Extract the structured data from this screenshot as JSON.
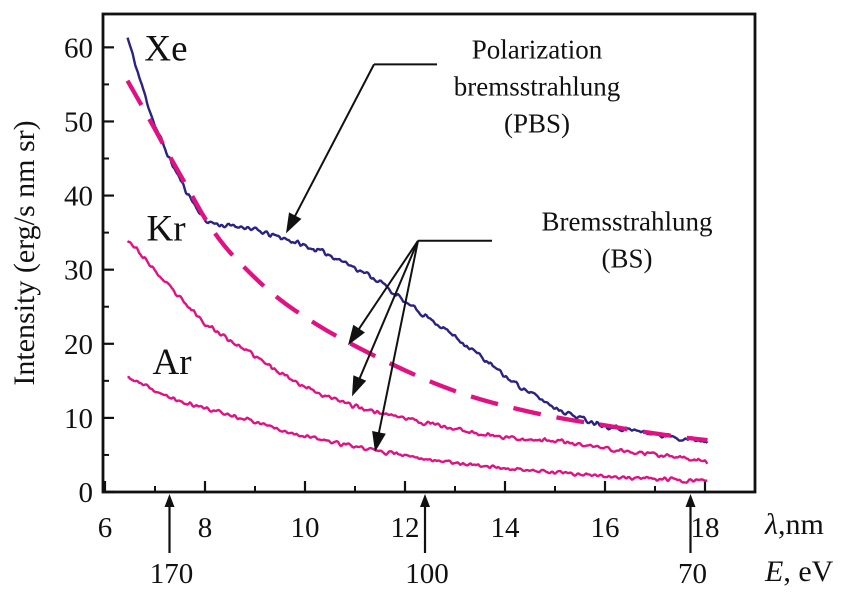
{
  "chart_data": {
    "type": "line",
    "title": "",
    "ylabel": "Intensity (erg/s nm sr)",
    "xlabel": {
      "symbol": "λ",
      "rest": ",nm"
    },
    "x2label": {
      "symbol": "E",
      "rest": ", eV"
    },
    "xlim": [
      5.96,
      19.0
    ],
    "ylim": [
      0,
      64.5
    ],
    "x_major_ticks": [
      6,
      8,
      10,
      12,
      14,
      16,
      18
    ],
    "x_minor_ticks": [
      7,
      9,
      11,
      13,
      15,
      17
    ],
    "y_major_ticks": [
      0,
      10,
      20,
      30,
      40,
      50,
      60
    ],
    "y_minor_ticks": [
      5,
      15,
      25,
      35,
      45,
      55
    ],
    "grid": false,
    "legend_position": "none",
    "x2_markers": [
      {
        "label": "170",
        "lambda": 7.29
      },
      {
        "label": "100",
        "lambda": 12.4
      },
      {
        "label": "70",
        "lambda": 17.71
      }
    ],
    "colors": {
      "pbs_curve": "#2a2383",
      "bs_curve": "#e01283",
      "axis": "#111111"
    },
    "series": [
      {
        "name": "Kr",
        "style": "noisy",
        "color": "#e01283",
        "noise": 0.42,
        "points": [
          [
            6.45,
            34.2
          ],
          [
            6.8,
            31.4
          ],
          [
            7.2,
            28.3
          ],
          [
            7.6,
            25.4
          ],
          [
            8.0,
            22.8
          ],
          [
            8.4,
            20.9
          ],
          [
            8.8,
            19.2
          ],
          [
            9.2,
            17.4
          ],
          [
            9.6,
            15.8
          ],
          [
            10.0,
            14.2
          ],
          [
            10.5,
            12.7
          ],
          [
            11.0,
            11.6
          ],
          [
            11.5,
            10.7
          ],
          [
            12.0,
            10.0
          ],
          [
            12.5,
            9.2
          ],
          [
            13.0,
            8.5
          ],
          [
            13.5,
            7.9
          ],
          [
            14.0,
            7.4
          ],
          [
            14.5,
            7.1
          ],
          [
            15.0,
            6.9
          ],
          [
            15.5,
            6.4
          ],
          [
            16.0,
            5.9
          ],
          [
            16.5,
            5.4
          ],
          [
            17.0,
            5.0
          ],
          [
            17.5,
            4.6
          ],
          [
            18.05,
            4.2
          ]
        ]
      },
      {
        "name": "Ar",
        "style": "noisy",
        "color": "#e01283",
        "noise": 0.36,
        "points": [
          [
            6.45,
            15.5
          ],
          [
            6.8,
            14.3
          ],
          [
            7.2,
            13.0
          ],
          [
            7.6,
            12.0
          ],
          [
            8.0,
            11.3
          ],
          [
            8.4,
            10.6
          ],
          [
            8.8,
            9.9
          ],
          [
            9.2,
            9.1
          ],
          [
            9.6,
            8.3
          ],
          [
            10.0,
            7.5
          ],
          [
            10.5,
            6.8
          ],
          [
            11.0,
            6.1
          ],
          [
            11.5,
            5.5
          ],
          [
            12.0,
            4.9
          ],
          [
            12.5,
            4.4
          ],
          [
            13.0,
            4.0
          ],
          [
            13.5,
            3.6
          ],
          [
            14.0,
            3.2
          ],
          [
            14.5,
            2.9
          ],
          [
            15.0,
            2.6
          ],
          [
            15.5,
            2.3
          ],
          [
            16.0,
            2.1
          ],
          [
            16.5,
            1.9
          ],
          [
            17.0,
            1.8
          ],
          [
            17.5,
            1.6
          ],
          [
            18.05,
            1.5
          ]
        ]
      },
      {
        "name": "Xe",
        "style": "noisy",
        "color": "#2a2383",
        "noise": 0.48,
        "points": [
          [
            6.45,
            61.3
          ],
          [
            6.7,
            55.6
          ],
          [
            7.0,
            49.4
          ],
          [
            7.3,
            44.8
          ],
          [
            7.6,
            40.9
          ],
          [
            7.8,
            38.7
          ],
          [
            8.0,
            36.6
          ],
          [
            8.4,
            35.9
          ],
          [
            8.8,
            35.8
          ],
          [
            9.2,
            34.9
          ],
          [
            9.6,
            34.2
          ],
          [
            10.0,
            33.2
          ],
          [
            10.5,
            32.0
          ],
          [
            11.0,
            30.3
          ],
          [
            11.5,
            28.4
          ],
          [
            12.0,
            25.6
          ],
          [
            12.5,
            23.4
          ],
          [
            13.0,
            21.0
          ],
          [
            13.5,
            18.4
          ],
          [
            14.0,
            15.6
          ],
          [
            14.5,
            13.4
          ],
          [
            15.0,
            11.4
          ],
          [
            15.5,
            10.0
          ],
          [
            16.0,
            9.0
          ],
          [
            16.5,
            8.4
          ],
          [
            17.0,
            7.8
          ],
          [
            17.5,
            7.3
          ],
          [
            18.05,
            6.9
          ]
        ]
      },
      {
        "name": "BS",
        "style": "dashed",
        "color": "#e01283",
        "noise": 0,
        "points": [
          [
            6.45,
            55.5
          ],
          [
            6.9,
            50.2
          ],
          [
            7.3,
            45.2
          ],
          [
            7.7,
            40.5
          ],
          [
            8.0,
            36.8
          ],
          [
            8.4,
            33.0
          ],
          [
            8.8,
            30.2
          ],
          [
            9.2,
            27.6
          ],
          [
            9.6,
            25.4
          ],
          [
            10.0,
            23.6
          ],
          [
            10.5,
            21.5
          ],
          [
            11.0,
            19.7
          ],
          [
            11.5,
            18.0
          ],
          [
            12.0,
            16.4
          ],
          [
            12.5,
            14.9
          ],
          [
            13.0,
            13.6
          ],
          [
            13.5,
            12.5
          ],
          [
            14.0,
            11.6
          ],
          [
            14.5,
            10.8
          ],
          [
            15.0,
            10.1
          ],
          [
            15.5,
            9.5
          ],
          [
            16.0,
            9.0
          ],
          [
            16.5,
            8.4
          ],
          [
            17.0,
            7.9
          ],
          [
            17.5,
            7.4
          ],
          [
            18.05,
            7.0
          ]
        ]
      }
    ],
    "curve_labels": [
      {
        "text": "Xe",
        "lambda": 7.22,
        "intensity": 60.0
      },
      {
        "text": "Kr",
        "lambda": 7.22,
        "intensity": 35.7
      },
      {
        "text": "Ar",
        "lambda": 7.34,
        "intensity": 17.7
      }
    ],
    "annotations": [
      {
        "id": "pbs",
        "lines": [
          "Polarization",
          "bremsstrahlung",
          "(PBS)"
        ],
        "text_center": {
          "lambda": 14.64,
          "intensity_top": 59.7,
          "line_dy": 5.0
        },
        "leader": [
          [
            12.64,
            57.7
          ],
          [
            11.38,
            57.7
          ]
        ],
        "arrows": [
          [
            [
              11.38,
              57.7
            ],
            [
              9.62,
              34.9
            ]
          ]
        ]
      },
      {
        "id": "bs",
        "lines": [
          "Bremsstrahlung",
          "(BS)"
        ],
        "text_center": {
          "lambda": 16.44,
          "intensity_top": 36.5,
          "line_dy": 5.0
        },
        "leader": [
          [
            13.74,
            33.9
          ],
          [
            12.26,
            33.9
          ]
        ],
        "arrows": [
          [
            [
              12.26,
              33.9
            ],
            [
              10.86,
              19.8
            ]
          ],
          [
            [
              12.26,
              33.9
            ],
            [
              10.94,
              12.9
            ]
          ],
          [
            [
              12.26,
              33.9
            ],
            [
              11.4,
              5.4
            ]
          ]
        ]
      }
    ]
  }
}
